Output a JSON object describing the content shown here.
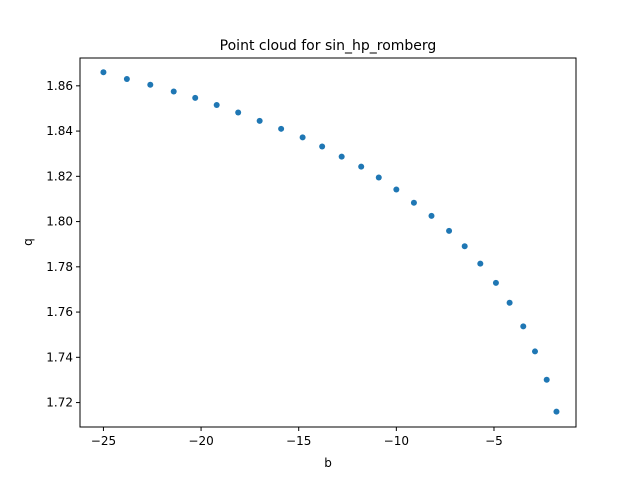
{
  "chart_data": {
    "type": "scatter",
    "title": "Point cloud for sin_hp_romberg",
    "xlabel": "b",
    "ylabel": "q",
    "xlim": [
      -26.2,
      -0.8
    ],
    "ylim": [
      1.7092,
      1.8723
    ],
    "x_ticks": [
      -25,
      -20,
      -15,
      -10,
      -5
    ],
    "x_tick_labels": [
      "−25",
      "−20",
      "−15",
      "−10",
      "−5"
    ],
    "y_ticks": [
      1.72,
      1.74,
      1.76,
      1.78,
      1.8,
      1.82,
      1.84,
      1.86
    ],
    "y_tick_labels": [
      "1.72",
      "1.74",
      "1.76",
      "1.78",
      "1.80",
      "1.82",
      "1.84",
      "1.86"
    ],
    "grid": false,
    "marker_color": "#1f77b4",
    "series": [
      {
        "x": [
          -25.0,
          -23.8,
          -22.6,
          -21.4,
          -20.3,
          -19.2,
          -18.1,
          -17.0,
          -15.9,
          -14.8,
          -13.8,
          -12.8,
          -11.8,
          -10.9,
          -10.0,
          -9.1,
          -8.2,
          -7.3,
          -6.5,
          -5.7,
          -4.9,
          -4.2,
          -3.5,
          -2.9,
          -2.3,
          -1.8
        ],
        "y": [
          1.866,
          1.863,
          1.8605,
          1.8575,
          1.8547,
          1.8515,
          1.8482,
          1.8445,
          1.841,
          1.8372,
          1.8332,
          1.8287,
          1.8243,
          1.8195,
          1.8142,
          1.8083,
          1.8025,
          1.7959,
          1.7891,
          1.7814,
          1.7729,
          1.7641,
          1.7537,
          1.7426,
          1.7301,
          1.716
        ]
      }
    ]
  }
}
